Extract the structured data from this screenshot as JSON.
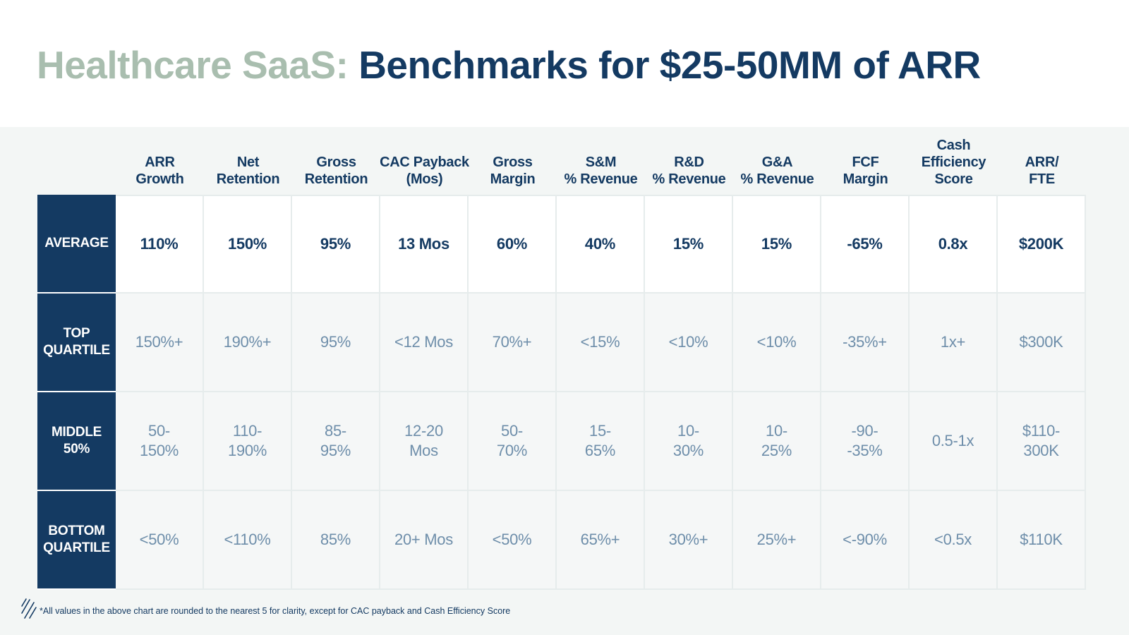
{
  "title": {
    "accent": "Healthcare SaaS:",
    "main": "Benchmarks for $25-50MM of ARR"
  },
  "columns": [
    [
      "ARR",
      "Growth"
    ],
    [
      "Net",
      "Retention"
    ],
    [
      "Gross",
      "Retention"
    ],
    [
      "CAC Payback",
      "(Mos)"
    ],
    [
      "Gross",
      "Margin"
    ],
    [
      "S&M",
      "% Revenue"
    ],
    [
      "R&D",
      "% Revenue"
    ],
    [
      "G&A",
      "% Revenue"
    ],
    [
      "FCF",
      "Margin"
    ],
    [
      "Cash",
      "Efficiency",
      "Score"
    ],
    [
      "ARR/",
      "FTE"
    ]
  ],
  "rows": [
    {
      "label": [
        "AVERAGE"
      ],
      "highlight": true,
      "values": [
        [
          "110%"
        ],
        [
          "150%"
        ],
        [
          "95%"
        ],
        [
          "13 Mos"
        ],
        [
          "60%"
        ],
        [
          "40%"
        ],
        [
          "15%"
        ],
        [
          "15%"
        ],
        [
          "-65%"
        ],
        [
          "0.8x"
        ],
        [
          "$200K"
        ]
      ]
    },
    {
      "label": [
        "TOP",
        "QUARTILE"
      ],
      "highlight": false,
      "values": [
        [
          "150%+"
        ],
        [
          "190%+"
        ],
        [
          "95%"
        ],
        [
          "<12 Mos"
        ],
        [
          "70%+"
        ],
        [
          "<15%"
        ],
        [
          "<10%"
        ],
        [
          "<10%"
        ],
        [
          "-35%+"
        ],
        [
          "1x+"
        ],
        [
          "$300K"
        ]
      ]
    },
    {
      "label": [
        "MIDDLE",
        "50%"
      ],
      "highlight": false,
      "values": [
        [
          "50-",
          "150%"
        ],
        [
          "110-",
          "190%"
        ],
        [
          "85-",
          "95%"
        ],
        [
          "12-20",
          "Mos"
        ],
        [
          "50-",
          "70%"
        ],
        [
          "15-",
          "65%"
        ],
        [
          "10-",
          "30%"
        ],
        [
          "10-",
          "25%"
        ],
        [
          "-90-",
          "-35%"
        ],
        [
          "0.5-1x"
        ],
        [
          "$110-",
          "300K"
        ]
      ]
    },
    {
      "label": [
        "BOTTOM",
        "QUARTILE"
      ],
      "highlight": false,
      "values": [
        [
          "<50%"
        ],
        [
          "<110%"
        ],
        [
          "85%"
        ],
        [
          "20+ Mos"
        ],
        [
          "<50%"
        ],
        [
          "65%+"
        ],
        [
          "30%+"
        ],
        [
          "25%+"
        ],
        [
          "<-90%"
        ],
        [
          "<0.5x"
        ],
        [
          "$110K"
        ]
      ]
    }
  ],
  "footnote": "*All values in the above chart are rounded to the nearest 5 for clarity, except for CAC payback and Cash Efficiency Score",
  "colors": {
    "navy": "#143a62",
    "sage": "#a9beaf",
    "muted_value": "#6e8eaa",
    "panel_bg": "#f3f6f5"
  }
}
